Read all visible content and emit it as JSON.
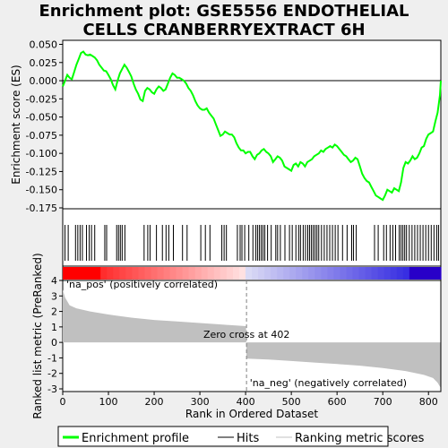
{
  "chart_data": {
    "type": "line",
    "title_line1": "Enrichment plot: GSE5556 ENDOTHELIAL",
    "title_line2": "CELLS CRANBERRYEXTRACT 6H",
    "es_panel": {
      "ylabel": "Enrichment score (ES)",
      "ylim": [
        -0.175,
        0.05
      ],
      "yticks": [
        "0.050",
        "0.025",
        "0.000",
        "-0.025",
        "-0.050",
        "-0.075",
        "-0.100",
        "-0.125",
        "-0.150",
        "-0.175"
      ],
      "ytick_values": [
        0.05,
        0.025,
        0.0,
        -0.025,
        -0.05,
        -0.075,
        -0.1,
        -0.125,
        -0.15,
        -0.175
      ],
      "series_name": "Enrichment profile",
      "color": "#00ff00",
      "points": [
        [
          0,
          -0.008
        ],
        [
          5,
          0.0
        ],
        [
          10,
          0.008
        ],
        [
          15,
          0.004
        ],
        [
          20,
          0.002
        ],
        [
          25,
          0.012
        ],
        [
          30,
          0.022
        ],
        [
          35,
          0.03
        ],
        [
          40,
          0.038
        ],
        [
          45,
          0.04
        ],
        [
          50,
          0.036
        ],
        [
          55,
          0.035
        ],
        [
          60,
          0.036
        ],
        [
          65,
          0.034
        ],
        [
          70,
          0.032
        ],
        [
          75,
          0.028
        ],
        [
          80,
          0.022
        ],
        [
          85,
          0.018
        ],
        [
          90,
          0.014
        ],
        [
          95,
          0.013
        ],
        [
          100,
          0.008
        ],
        [
          105,
          0.002
        ],
        [
          110,
          -0.006
        ],
        [
          115,
          -0.012
        ],
        [
          120,
          0.0
        ],
        [
          125,
          0.01
        ],
        [
          130,
          0.016
        ],
        [
          135,
          0.022
        ],
        [
          140,
          0.018
        ],
        [
          145,
          0.012
        ],
        [
          150,
          0.006
        ],
        [
          155,
          -0.004
        ],
        [
          160,
          -0.012
        ],
        [
          165,
          -0.018
        ],
        [
          170,
          -0.026
        ],
        [
          175,
          -0.028
        ],
        [
          180,
          -0.014
        ],
        [
          185,
          -0.01
        ],
        [
          190,
          -0.012
        ],
        [
          195,
          -0.016
        ],
        [
          200,
          -0.018
        ],
        [
          205,
          -0.012
        ],
        [
          210,
          -0.008
        ],
        [
          215,
          -0.01
        ],
        [
          220,
          -0.014
        ],
        [
          225,
          -0.012
        ],
        [
          230,
          -0.004
        ],
        [
          235,
          0.004
        ],
        [
          240,
          0.01
        ],
        [
          245,
          0.008
        ],
        [
          250,
          0.004
        ],
        [
          255,
          0.004
        ],
        [
          260,
          0.002
        ],
        [
          265,
          0.0
        ],
        [
          270,
          -0.004
        ],
        [
          275,
          -0.01
        ],
        [
          280,
          -0.014
        ],
        [
          285,
          -0.02
        ],
        [
          290,
          -0.028
        ],
        [
          295,
          -0.034
        ],
        [
          300,
          -0.038
        ],
        [
          305,
          -0.04
        ],
        [
          310,
          -0.04
        ],
        [
          315,
          -0.038
        ],
        [
          320,
          -0.044
        ],
        [
          325,
          -0.048
        ],
        [
          330,
          -0.052
        ],
        [
          335,
          -0.06
        ],
        [
          340,
          -0.068
        ],
        [
          345,
          -0.076
        ],
        [
          350,
          -0.074
        ],
        [
          355,
          -0.07
        ],
        [
          360,
          -0.072
        ],
        [
          365,
          -0.074
        ],
        [
          370,
          -0.074
        ],
        [
          375,
          -0.078
        ],
        [
          380,
          -0.086
        ],
        [
          385,
          -0.092
        ],
        [
          390,
          -0.096
        ],
        [
          395,
          -0.096
        ],
        [
          400,
          -0.1
        ],
        [
          405,
          -0.098
        ],
        [
          410,
          -0.098
        ],
        [
          415,
          -0.104
        ],
        [
          420,
          -0.108
        ],
        [
          425,
          -0.102
        ],
        [
          430,
          -0.1
        ],
        [
          435,
          -0.096
        ],
        [
          440,
          -0.094
        ],
        [
          445,
          -0.098
        ],
        [
          450,
          -0.1
        ],
        [
          455,
          -0.104
        ],
        [
          460,
          -0.112
        ],
        [
          465,
          -0.108
        ],
        [
          470,
          -0.104
        ],
        [
          475,
          -0.106
        ],
        [
          480,
          -0.11
        ],
        [
          485,
          -0.118
        ],
        [
          490,
          -0.12
        ],
        [
          495,
          -0.122
        ],
        [
          500,
          -0.124
        ],
        [
          505,
          -0.116
        ],
        [
          510,
          -0.114
        ],
        [
          515,
          -0.118
        ],
        [
          520,
          -0.112
        ],
        [
          525,
          -0.114
        ],
        [
          530,
          -0.118
        ],
        [
          535,
          -0.112
        ],
        [
          540,
          -0.11
        ],
        [
          545,
          -0.108
        ],
        [
          550,
          -0.104
        ],
        [
          555,
          -0.102
        ],
        [
          560,
          -0.1
        ],
        [
          565,
          -0.096
        ],
        [
          570,
          -0.098
        ],
        [
          575,
          -0.094
        ],
        [
          580,
          -0.092
        ],
        [
          585,
          -0.09
        ],
        [
          590,
          -0.092
        ],
        [
          595,
          -0.088
        ],
        [
          600,
          -0.09
        ],
        [
          605,
          -0.094
        ],
        [
          610,
          -0.098
        ],
        [
          615,
          -0.102
        ],
        [
          620,
          -0.104
        ],
        [
          625,
          -0.108
        ],
        [
          630,
          -0.112
        ],
        [
          635,
          -0.11
        ],
        [
          640,
          -0.106
        ],
        [
          645,
          -0.108
        ],
        [
          650,
          -0.118
        ],
        [
          655,
          -0.128
        ],
        [
          660,
          -0.134
        ],
        [
          665,
          -0.138
        ],
        [
          670,
          -0.14
        ],
        [
          675,
          -0.146
        ],
        [
          680,
          -0.152
        ],
        [
          685,
          -0.158
        ],
        [
          690,
          -0.16
        ],
        [
          695,
          -0.162
        ],
        [
          700,
          -0.164
        ],
        [
          705,
          -0.158
        ],
        [
          710,
          -0.15
        ],
        [
          715,
          -0.152
        ],
        [
          720,
          -0.154
        ],
        [
          725,
          -0.148
        ],
        [
          730,
          -0.15
        ],
        [
          735,
          -0.152
        ],
        [
          740,
          -0.14
        ],
        [
          745,
          -0.12
        ],
        [
          750,
          -0.112
        ],
        [
          755,
          -0.114
        ],
        [
          760,
          -0.11
        ],
        [
          765,
          -0.104
        ],
        [
          770,
          -0.108
        ],
        [
          775,
          -0.106
        ],
        [
          780,
          -0.1
        ],
        [
          785,
          -0.092
        ],
        [
          790,
          -0.09
        ],
        [
          795,
          -0.08
        ],
        [
          800,
          -0.074
        ],
        [
          805,
          -0.072
        ],
        [
          810,
          -0.07
        ],
        [
          815,
          -0.056
        ],
        [
          820,
          -0.044
        ],
        [
          825,
          -0.02
        ],
        [
          827,
          0.0
        ]
      ]
    },
    "hits": [
      5,
      12,
      28,
      33,
      38,
      43,
      52,
      58,
      63,
      70,
      92,
      96,
      118,
      122,
      126,
      130,
      136,
      178,
      186,
      191,
      205,
      218,
      226,
      232,
      242,
      262,
      272,
      302,
      312,
      322,
      348,
      353,
      358,
      382,
      388,
      392,
      398,
      407,
      416,
      422,
      426,
      430,
      434,
      438,
      442,
      448,
      456,
      466,
      470,
      476,
      486,
      496,
      502,
      510,
      516,
      520,
      526,
      531,
      536,
      540,
      544,
      548,
      552,
      556,
      560,
      566,
      572,
      578,
      584,
      590,
      596,
      602,
      612,
      622,
      632,
      636,
      642,
      682,
      690,
      702,
      708,
      716,
      722,
      728,
      736,
      740,
      744,
      748,
      752,
      758,
      764,
      770,
      776,
      782,
      788,
      794,
      800,
      806,
      812,
      818,
      822
    ],
    "metric_panel": {
      "ylabel": "Ranked list metric (PreRanked)",
      "ylim": [
        -3,
        4
      ],
      "yticks": [
        "4",
        "3",
        "2",
        "1",
        "0",
        "-1",
        "-2",
        "-3"
      ],
      "ytick_values": [
        4,
        3,
        2,
        1,
        0,
        -1,
        -2,
        -3
      ],
      "profile": [
        [
          0,
          3.4
        ],
        [
          5,
          2.9
        ],
        [
          15,
          2.4
        ],
        [
          30,
          2.2
        ],
        [
          60,
          2.0
        ],
        [
          100,
          1.8
        ],
        [
          150,
          1.6
        ],
        [
          200,
          1.45
        ],
        [
          250,
          1.35
        ],
        [
          300,
          1.25
        ],
        [
          350,
          1.15
        ],
        [
          401,
          1.05
        ],
        [
          402,
          -1.05
        ],
        [
          450,
          -1.1
        ],
        [
          500,
          -1.2
        ],
        [
          550,
          -1.3
        ],
        [
          600,
          -1.4
        ],
        [
          650,
          -1.5
        ],
        [
          700,
          -1.65
        ],
        [
          750,
          -1.85
        ],
        [
          790,
          -2.1
        ],
        [
          810,
          -2.3
        ],
        [
          820,
          -2.6
        ],
        [
          826,
          -2.9
        ]
      ],
      "pos_label": "'na_pos' (positively correlated)",
      "neg_label": "'na_neg' (negatively correlated)",
      "zero_cross_label": "Zero cross at 402",
      "zero_cross": 402
    },
    "xlabel": "Rank in Ordered Dataset",
    "xlim": [
      0,
      827
    ],
    "xticks": [
      "0",
      "100",
      "200",
      "300",
      "400",
      "500",
      "600",
      "700",
      "800"
    ],
    "xtick_values": [
      0,
      100,
      200,
      300,
      400,
      500,
      600,
      700,
      800
    ],
    "legend": [
      {
        "label": "Enrichment profile",
        "color": "#00ff00"
      },
      {
        "label": "Hits",
        "color": "#000000"
      },
      {
        "label": "Ranking metric scores",
        "color": "#c0c0c0"
      }
    ],
    "grid": false
  }
}
